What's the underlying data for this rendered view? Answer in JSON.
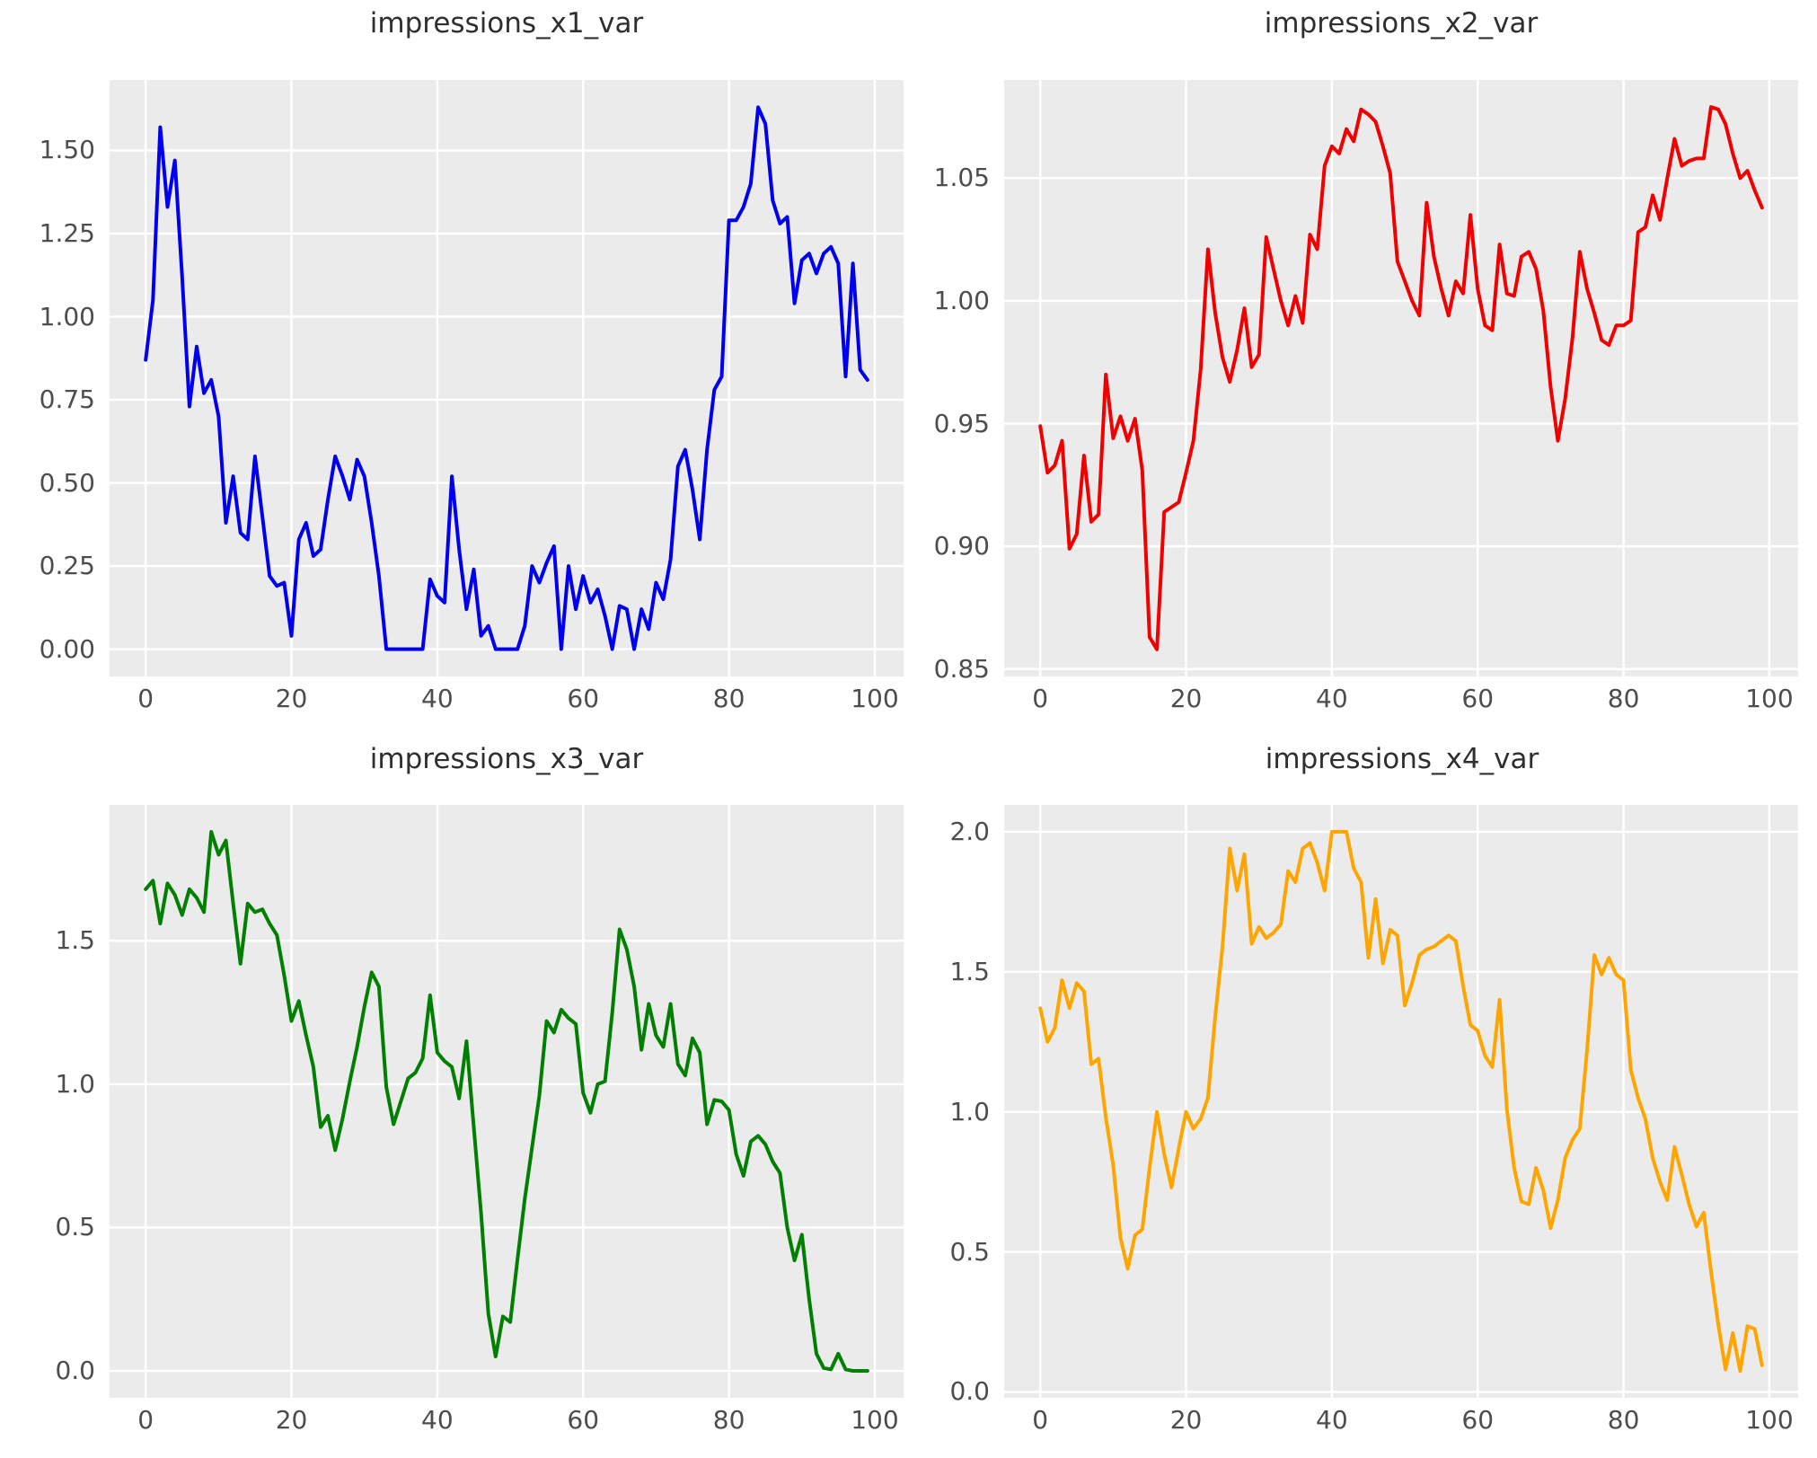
{
  "figure": {
    "background": "#ffffff",
    "plot_background": "#ebebeb",
    "grid_color": "#ffffff",
    "title_color": "#2f2f2f",
    "tick_color": "#4d4d4d",
    "grid": true,
    "legend": "none",
    "layout": "2x2 grid of line subplots"
  },
  "chart_data": [
    {
      "type": "line",
      "title": "impressions_x1_var",
      "color": "#0000ee",
      "line_width": 4,
      "x": {
        "start": 0,
        "end": 99,
        "step": 1
      },
      "y": [
        0.87,
        1.05,
        1.57,
        1.33,
        1.47,
        1.12,
        0.73,
        0.91,
        0.77,
        0.81,
        0.7,
        0.38,
        0.52,
        0.35,
        0.33,
        0.58,
        0.4,
        0.22,
        0.19,
        0.2,
        0.04,
        0.33,
        0.38,
        0.28,
        0.3,
        0.45,
        0.58,
        0.52,
        0.45,
        0.57,
        0.52,
        0.38,
        0.22,
        0.0,
        0.0,
        0.0,
        0.0,
        0.0,
        0.0,
        0.21,
        0.16,
        0.14,
        0.52,
        0.3,
        0.12,
        0.24,
        0.04,
        0.07,
        0.0,
        0.0,
        0.0,
        0.0,
        0.07,
        0.25,
        0.2,
        0.26,
        0.31,
        0.0,
        0.25,
        0.12,
        0.22,
        0.14,
        0.18,
        0.1,
        0.0,
        0.13,
        0.12,
        0.0,
        0.12,
        0.06,
        0.2,
        0.15,
        0.27,
        0.55,
        0.6,
        0.48,
        0.33,
        0.6,
        0.78,
        0.82,
        1.29,
        1.29,
        1.33,
        1.4,
        1.63,
        1.58,
        1.35,
        1.28,
        1.3,
        1.04,
        1.17,
        1.19,
        1.13,
        1.19,
        1.21,
        1.16,
        0.82,
        1.16,
        0.84,
        0.81
      ],
      "xlim": [
        -4.95,
        103.95
      ],
      "ylim": [
        -0.082,
        1.712
      ],
      "xticks": [
        0,
        20,
        40,
        60,
        80,
        100
      ],
      "xtick_labels": [
        "0",
        "20",
        "40",
        "60",
        "80",
        "100"
      ],
      "yticks": [
        0.0,
        0.25,
        0.5,
        0.75,
        1.0,
        1.25,
        1.5
      ],
      "ytick_labels": [
        "0.00",
        "0.25",
        "0.50",
        "0.75",
        "1.00",
        "1.25",
        "1.50"
      ]
    },
    {
      "type": "line",
      "title": "impressions_x2_var",
      "color": "#f00000",
      "line_width": 4,
      "x": {
        "start": 0,
        "end": 99,
        "step": 1
      },
      "y": [
        0.949,
        0.93,
        0.933,
        0.943,
        0.899,
        0.905,
        0.937,
        0.91,
        0.913,
        0.97,
        0.944,
        0.953,
        0.943,
        0.952,
        0.931,
        0.863,
        0.858,
        0.914,
        0.916,
        0.918,
        0.93,
        0.943,
        0.972,
        1.021,
        0.995,
        0.977,
        0.967,
        0.98,
        0.997,
        0.973,
        0.978,
        1.026,
        1.013,
        1.0,
        0.99,
        1.002,
        0.991,
        1.027,
        1.021,
        1.055,
        1.063,
        1.06,
        1.07,
        1.065,
        1.078,
        1.076,
        1.073,
        1.063,
        1.052,
        1.016,
        1.008,
        1.0,
        0.994,
        1.04,
        1.018,
        1.005,
        0.994,
        1.008,
        1.003,
        1.035,
        1.005,
        0.99,
        0.988,
        1.023,
        1.003,
        1.002,
        1.018,
        1.02,
        1.013,
        0.996,
        0.965,
        0.943,
        0.96,
        0.985,
        1.02,
        1.005,
        0.995,
        0.984,
        0.982,
        0.99,
        0.99,
        0.992,
        1.028,
        1.03,
        1.043,
        1.033,
        1.05,
        1.066,
        1.055,
        1.057,
        1.058,
        1.058,
        1.079,
        1.078,
        1.072,
        1.06,
        1.05,
        1.053,
        1.045,
        1.038
      ],
      "xlim": [
        -4.95,
        103.95
      ],
      "ylim": [
        0.847,
        1.09
      ],
      "xticks": [
        0,
        20,
        40,
        60,
        80,
        100
      ],
      "xtick_labels": [
        "0",
        "20",
        "40",
        "60",
        "80",
        "100"
      ],
      "yticks": [
        0.85,
        0.9,
        0.95,
        1.0,
        1.05
      ],
      "ytick_labels": [
        "0.85",
        "0.90",
        "0.95",
        "1.00",
        "1.05"
      ]
    },
    {
      "type": "line",
      "title": "impressions_x3_var",
      "color": "#007f00",
      "line_width": 4,
      "x": {
        "start": 0,
        "end": 99,
        "step": 1
      },
      "y": [
        1.68,
        1.71,
        1.56,
        1.7,
        1.66,
        1.59,
        1.68,
        1.65,
        1.6,
        1.88,
        1.8,
        1.85,
        1.63,
        1.42,
        1.63,
        1.6,
        1.61,
        1.56,
        1.52,
        1.38,
        1.22,
        1.29,
        1.17,
        1.06,
        0.85,
        0.89,
        0.77,
        0.88,
        1.01,
        1.13,
        1.27,
        1.39,
        1.34,
        0.99,
        0.86,
        0.94,
        1.02,
        1.04,
        1.09,
        1.31,
        1.11,
        1.08,
        1.06,
        0.95,
        1.15,
        0.85,
        0.55,
        0.2,
        0.05,
        0.19,
        0.17,
        0.39,
        0.6,
        0.78,
        0.96,
        1.22,
        1.18,
        1.26,
        1.23,
        1.21,
        0.97,
        0.9,
        1.0,
        1.01,
        1.25,
        1.54,
        1.47,
        1.34,
        1.12,
        1.28,
        1.17,
        1.13,
        1.28,
        1.07,
        1.03,
        1.16,
        1.11,
        0.86,
        0.945,
        0.94,
        0.91,
        0.755,
        0.68,
        0.8,
        0.82,
        0.79,
        0.73,
        0.69,
        0.5,
        0.385,
        0.475,
        0.25,
        0.06,
        0.01,
        0.005,
        0.06,
        0.005,
        0.0,
        0.0,
        0.0
      ],
      "xlim": [
        -4.95,
        103.95
      ],
      "ylim": [
        -0.094,
        1.974
      ],
      "xticks": [
        0,
        20,
        40,
        60,
        80,
        100
      ],
      "xtick_labels": [
        "0",
        "20",
        "40",
        "60",
        "80",
        "100"
      ],
      "yticks": [
        0.0,
        0.5,
        1.0,
        1.5
      ],
      "ytick_labels": [
        "0.0",
        "0.5",
        "1.0",
        "1.5"
      ]
    },
    {
      "type": "line",
      "title": "impressions_x4_var",
      "color": "#ffa500",
      "line_width": 4,
      "x": {
        "start": 0,
        "end": 99,
        "step": 1
      },
      "y": [
        1.37,
        1.25,
        1.3,
        1.47,
        1.37,
        1.46,
        1.43,
        1.17,
        1.19,
        0.98,
        0.81,
        0.55,
        0.44,
        0.56,
        0.58,
        0.8,
        1.0,
        0.85,
        0.73,
        0.87,
        1.0,
        0.94,
        0.975,
        1.05,
        1.34,
        1.59,
        1.94,
        1.79,
        1.92,
        1.6,
        1.66,
        1.62,
        1.64,
        1.67,
        1.86,
        1.82,
        1.94,
        1.96,
        1.89,
        1.79,
        2.0,
        2.0,
        2.0,
        1.87,
        1.82,
        1.55,
        1.76,
        1.53,
        1.65,
        1.63,
        1.38,
        1.46,
        1.56,
        1.58,
        1.59,
        1.61,
        1.63,
        1.61,
        1.45,
        1.31,
        1.29,
        1.2,
        1.16,
        1.4,
        1.01,
        0.8,
        0.68,
        0.67,
        0.8,
        0.72,
        0.585,
        0.685,
        0.835,
        0.9,
        0.94,
        1.22,
        1.56,
        1.49,
        1.55,
        1.49,
        1.47,
        1.15,
        1.05,
        0.975,
        0.835,
        0.75,
        0.685,
        0.875,
        0.775,
        0.67,
        0.59,
        0.64,
        0.43,
        0.24,
        0.08,
        0.21,
        0.075,
        0.235,
        0.225,
        0.095
      ],
      "xlim": [
        -4.95,
        103.95
      ],
      "ylim": [
        -0.021,
        2.096
      ],
      "xticks": [
        0,
        20,
        40,
        60,
        80,
        100
      ],
      "xtick_labels": [
        "0",
        "20",
        "40",
        "60",
        "80",
        "100"
      ],
      "yticks": [
        0.0,
        0.5,
        1.0,
        1.5,
        2.0
      ],
      "ytick_labels": [
        "0.0",
        "0.5",
        "1.0",
        "1.5",
        "2.0"
      ]
    }
  ]
}
